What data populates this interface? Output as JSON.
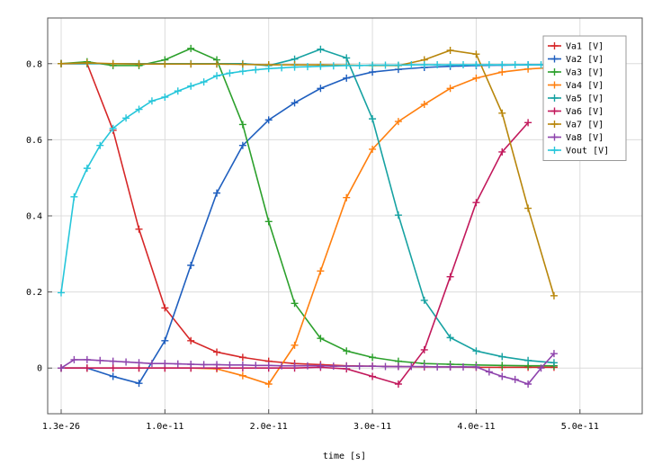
{
  "chart_data": {
    "type": "line",
    "title": "",
    "xlabel": "time [s]",
    "ylabel": "",
    "xlim": [
      -1.3e-12,
      5.6e-11
    ],
    "ylim": [
      -0.12,
      0.92
    ],
    "grid": true,
    "legend_position": "top-right",
    "x_ticks": [
      {
        "value": 1.3e-26,
        "label": "1.3e-26"
      },
      {
        "value": 1e-11,
        "label": "1.0e-11"
      },
      {
        "value": 2e-11,
        "label": "2.0e-11"
      },
      {
        "value": 3e-11,
        "label": "3.0e-11"
      },
      {
        "value": 4e-11,
        "label": "4.0e-11"
      },
      {
        "value": 5e-11,
        "label": "5.0e-11"
      }
    ],
    "y_ticks": [
      {
        "value": 0,
        "label": "0"
      },
      {
        "value": 0.2,
        "label": "0.2"
      },
      {
        "value": 0.4,
        "label": "0.4"
      },
      {
        "value": 0.6,
        "label": "0.6"
      },
      {
        "value": 0.8,
        "label": "0.8"
      }
    ],
    "x": [
      0,
      1.25e-12,
      2.5e-12,
      3.75e-12,
      5e-12,
      6.25e-12,
      7.5e-12,
      8.75e-12,
      1e-11,
      1.125e-11,
      1.25e-11,
      1.375e-11,
      1.5e-11,
      1.625e-11,
      1.75e-11,
      1.875e-11,
      2e-11,
      2.125e-11,
      2.25e-11,
      2.375e-11,
      2.5e-11,
      2.625e-11,
      2.75e-11,
      2.875e-11,
      3e-11,
      3.125e-11,
      3.25e-11,
      3.375e-11,
      3.5e-11,
      3.625e-11,
      3.75e-11,
      3.875e-11,
      4e-11,
      4.125e-11,
      4.25e-11,
      4.375e-11,
      4.5e-11,
      4.625e-11,
      4.75e-11
    ],
    "series": [
      {
        "name": "Va1 [V]",
        "color": "#d62728",
        "x": [
          0,
          2.5e-12,
          5e-12,
          7.5e-12,
          1e-11,
          1.25e-11,
          1.5e-11,
          1.75e-11,
          2e-11,
          2.25e-11,
          2.5e-11,
          2.75e-11,
          3e-11,
          3.25e-11,
          3.5e-11,
          3.75e-11,
          4e-11,
          4.25e-11,
          4.5e-11,
          4.75e-11
        ],
        "values": [
          0.8,
          0.8,
          0.625,
          0.365,
          0.158,
          0.072,
          0.042,
          0.028,
          0.018,
          0.012,
          0.009,
          0.006,
          0.005,
          0.004,
          0.003,
          0.003,
          0.002,
          0.002,
          0.002,
          0.002
        ]
      },
      {
        "name": "Va2 [V]",
        "color": "#1f5fbf",
        "x": [
          0,
          2.5e-12,
          5e-12,
          7.5e-12,
          1e-11,
          1.25e-11,
          1.5e-11,
          1.75e-11,
          2e-11,
          2.25e-11,
          2.5e-11,
          2.75e-11,
          3e-11,
          3.25e-11,
          3.5e-11,
          3.75e-11,
          4e-11,
          4.25e-11,
          4.5e-11,
          4.75e-11
        ],
        "values": [
          0,
          0,
          -0.022,
          -0.04,
          0.072,
          0.27,
          0.46,
          0.585,
          0.652,
          0.697,
          0.735,
          0.762,
          0.778,
          0.785,
          0.79,
          0.793,
          0.795,
          0.796,
          0.797,
          0.797
        ]
      },
      {
        "name": "Va3 [V]",
        "color": "#2ca02c",
        "x": [
          0,
          2.5e-12,
          5e-12,
          7.5e-12,
          1e-11,
          1.25e-11,
          1.5e-11,
          1.75e-11,
          2e-11,
          2.25e-11,
          2.5e-11,
          2.75e-11,
          3e-11,
          3.25e-11,
          3.5e-11,
          3.75e-11,
          4e-11,
          4.25e-11,
          4.5e-11,
          4.75e-11
        ],
        "values": [
          0.8,
          0.805,
          0.795,
          0.795,
          0.81,
          0.84,
          0.81,
          0.64,
          0.385,
          0.17,
          0.078,
          0.045,
          0.028,
          0.018,
          0.012,
          0.01,
          0.008,
          0.007,
          0.006,
          0.006
        ]
      },
      {
        "name": "Va4 [V]",
        "color": "#ff7f0e",
        "x": [
          0,
          2.5e-12,
          5e-12,
          7.5e-12,
          1e-11,
          1.25e-11,
          1.5e-11,
          1.75e-11,
          2e-11,
          2.25e-11,
          2.5e-11,
          2.75e-11,
          3e-11,
          3.25e-11,
          3.5e-11,
          3.75e-11,
          4e-11,
          4.25e-11,
          4.5e-11,
          4.75e-11
        ],
        "values": [
          0,
          0,
          0,
          0,
          0,
          0,
          -0.002,
          -0.02,
          -0.042,
          0.06,
          0.255,
          0.448,
          0.575,
          0.648,
          0.693,
          0.735,
          0.762,
          0.778,
          0.786,
          0.79
        ]
      },
      {
        "name": "Va5 [V]",
        "color": "#17a2a2",
        "x": [
          0,
          2.5e-12,
          5e-12,
          7.5e-12,
          1e-11,
          1.25e-11,
          1.5e-11,
          1.75e-11,
          2e-11,
          2.25e-11,
          2.5e-11,
          2.75e-11,
          3e-11,
          3.25e-11,
          3.5e-11,
          3.75e-11,
          4e-11,
          4.25e-11,
          4.5e-11,
          4.75e-11
        ],
        "values": [
          0.8,
          0.8,
          0.8,
          0.8,
          0.8,
          0.8,
          0.8,
          0.8,
          0.795,
          0.812,
          0.838,
          0.815,
          0.655,
          0.402,
          0.178,
          0.08,
          0.045,
          0.03,
          0.02,
          0.014
        ]
      },
      {
        "name": "Va6 [V]",
        "color": "#c2185b",
        "x": [
          0,
          2.5e-12,
          5e-12,
          7.5e-12,
          1e-11,
          1.25e-11,
          1.5e-11,
          1.75e-11,
          2e-11,
          2.25e-11,
          2.5e-11,
          2.75e-11,
          3e-11,
          3.25e-11,
          3.5e-11,
          3.75e-11,
          4e-11,
          4.25e-11,
          4.5e-11
        ],
        "values": [
          0,
          0,
          0,
          0,
          0,
          0,
          0,
          0,
          0,
          0,
          0.002,
          -0.002,
          -0.022,
          -0.042,
          0.048,
          0.24,
          0.435,
          0.568,
          0.645
        ]
      },
      {
        "name": "Va7 [V]",
        "color": "#b8860b",
        "x": [
          0,
          2.5e-12,
          5e-12,
          7.5e-12,
          1e-11,
          1.25e-11,
          1.5e-11,
          1.75e-11,
          2e-11,
          2.25e-11,
          2.5e-11,
          2.75e-11,
          3e-11,
          3.25e-11,
          3.5e-11,
          3.75e-11,
          4e-11,
          4.25e-11,
          4.5e-11,
          4.75e-11
        ],
        "values": [
          0.8,
          0.802,
          0.8,
          0.799,
          0.799,
          0.799,
          0.799,
          0.798,
          0.797,
          0.797,
          0.797,
          0.796,
          0.795,
          0.795,
          0.81,
          0.835,
          0.825,
          0.67,
          0.42,
          0.19
        ]
      },
      {
        "name": "Va8 [V]",
        "color": "#8e44ad",
        "x": [
          0,
          1.25e-12,
          2.5e-12,
          3.75e-12,
          5e-12,
          6.25e-12,
          7.5e-12,
          8.75e-12,
          1e-11,
          1.125e-11,
          1.25e-11,
          1.375e-11,
          1.5e-11,
          1.625e-11,
          1.75e-11,
          1.875e-11,
          2e-11,
          2.125e-11,
          2.25e-11,
          2.375e-11,
          2.5e-11,
          2.625e-11,
          2.75e-11,
          2.875e-11,
          3e-11,
          3.125e-11,
          3.25e-11,
          3.375e-11,
          3.5e-11,
          3.625e-11,
          3.75e-11,
          3.875e-11,
          4e-11,
          4.125e-11,
          4.25e-11,
          4.375e-11,
          4.5e-11,
          4.625e-11,
          4.75e-11
        ],
        "values": [
          0,
          0.022,
          0.022,
          0.02,
          0.018,
          0.016,
          0.014,
          0.012,
          0.012,
          0.011,
          0.01,
          0.009,
          0.009,
          0.008,
          0.008,
          0.007,
          0.007,
          0.006,
          0.006,
          0.006,
          0.006,
          0.005,
          0.005,
          0.005,
          0.005,
          0.004,
          0.004,
          0.004,
          0.004,
          0.003,
          0.003,
          0.003,
          0.003,
          -0.01,
          -0.022,
          -0.03,
          -0.042,
          0.0,
          0.038
        ]
      },
      {
        "name": "Vout [V]",
        "color": "#26c6da",
        "x": [
          0,
          1.25e-12,
          2.5e-12,
          3.75e-12,
          5e-12,
          6.25e-12,
          7.5e-12,
          8.75e-12,
          1e-11,
          1.125e-11,
          1.25e-11,
          1.375e-11,
          1.5e-11,
          1.625e-11,
          1.75e-11,
          1.875e-11,
          2e-11,
          2.125e-11,
          2.25e-11,
          2.375e-11,
          2.5e-11,
          2.625e-11,
          2.75e-11,
          2.875e-11,
          3e-11,
          3.125e-11,
          3.25e-11,
          3.375e-11,
          3.5e-11,
          3.625e-11,
          3.75e-11,
          3.875e-11,
          4e-11,
          4.125e-11,
          4.25e-11,
          4.375e-11,
          4.5e-11,
          4.625e-11,
          4.75e-11
        ],
        "values": [
          0.198,
          0.45,
          0.525,
          0.585,
          0.63,
          0.657,
          0.68,
          0.702,
          0.712,
          0.728,
          0.741,
          0.752,
          0.768,
          0.775,
          0.78,
          0.784,
          0.787,
          0.789,
          0.791,
          0.792,
          0.793,
          0.794,
          0.795,
          0.795,
          0.796,
          0.796,
          0.796,
          0.797,
          0.797,
          0.797,
          0.797,
          0.797,
          0.797,
          0.797,
          0.797,
          0.797,
          0.797,
          0.797,
          0.797
        ]
      }
    ]
  }
}
